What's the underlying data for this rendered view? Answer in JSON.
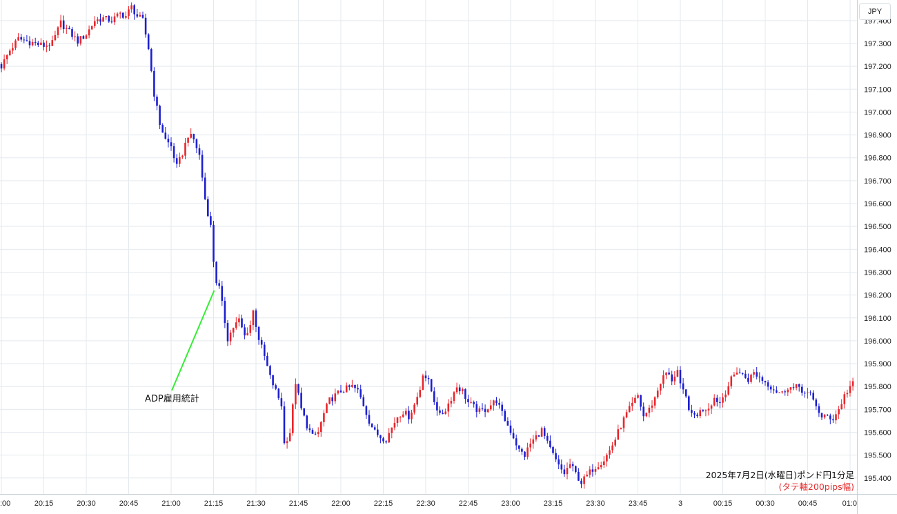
{
  "chart_data": {
    "type": "candlestick",
    "unit": "JPY",
    "y_ticks": [
      "197.400",
      "197.300",
      "197.200",
      "197.100",
      "197.000",
      "196.900",
      "196.800",
      "196.700",
      "196.600",
      "196.500",
      "196.400",
      "196.300",
      "196.200",
      "196.100",
      "196.000",
      "195.900",
      "195.800",
      "195.700",
      "195.600",
      "195.500",
      "195.400"
    ],
    "ylim": [
      195.33,
      197.49
    ],
    "x_ticks": [
      ":00",
      "20:15",
      "20:30",
      "20:45",
      "21:00",
      "21:15",
      "21:30",
      "21:45",
      "22:00",
      "22:15",
      "22:30",
      "22:45",
      "23:00",
      "23:15",
      "23:30",
      "23:45",
      "3",
      "00:15",
      "00:30",
      "00:45",
      "01:0"
    ],
    "grid": true,
    "annotation": {
      "text": "ADP雇用統計",
      "time": "21:15",
      "value": 196.22
    },
    "caption_line1": "2025年7月2日(水曜日)ポンド円1分足",
    "caption_line2": "(タテ軸200pips幅)",
    "colors": {
      "up": "#e8262c",
      "down": "#1c1fd0",
      "annotation_line": "#33ee33",
      "grid": "#e3e9ee"
    },
    "close_path": [
      [
        0,
        197.2
      ],
      [
        3,
        197.27
      ],
      [
        6,
        197.32
      ],
      [
        9,
        197.31
      ],
      [
        12,
        197.3
      ],
      [
        15,
        197.29
      ],
      [
        18,
        197.3
      ],
      [
        21,
        197.39
      ],
      [
        24,
        197.35
      ],
      [
        27,
        197.31
      ],
      [
        30,
        197.34
      ],
      [
        33,
        197.4
      ],
      [
        36,
        197.41
      ],
      [
        39,
        197.4
      ],
      [
        42,
        197.43
      ],
      [
        44,
        197.42
      ],
      [
        46,
        197.46
      ],
      [
        48,
        197.42
      ],
      [
        50,
        197.4
      ],
      [
        52,
        197.28
      ],
      [
        54,
        197.08
      ],
      [
        56,
        196.95
      ],
      [
        58,
        196.88
      ],
      [
        60,
        196.85
      ],
      [
        62,
        196.76
      ],
      [
        64,
        196.82
      ],
      [
        66,
        196.9
      ],
      [
        68,
        196.88
      ],
      [
        70,
        196.81
      ],
      [
        72,
        196.62
      ],
      [
        74,
        196.5
      ],
      [
        75,
        196.35
      ],
      [
        76,
        196.26
      ],
      [
        77,
        196.23
      ],
      [
        78,
        196.16
      ],
      [
        80,
        196.01
      ],
      [
        82,
        196.06
      ],
      [
        84,
        196.09
      ],
      [
        86,
        196.02
      ],
      [
        88,
        196.07
      ],
      [
        89,
        196.13
      ],
      [
        91,
        196.01
      ],
      [
        93,
        195.93
      ],
      [
        95,
        195.84
      ],
      [
        97,
        195.78
      ],
      [
        99,
        195.72
      ],
      [
        100,
        195.55
      ],
      [
        102,
        195.6
      ],
      [
        104,
        195.82
      ],
      [
        106,
        195.7
      ],
      [
        108,
        195.63
      ],
      [
        110,
        195.58
      ],
      [
        112,
        195.6
      ],
      [
        114,
        195.68
      ],
      [
        116,
        195.74
      ],
      [
        118,
        195.76
      ],
      [
        120,
        195.78
      ],
      [
        122,
        195.79
      ],
      [
        124,
        195.8
      ],
      [
        126,
        195.78
      ],
      [
        128,
        195.72
      ],
      [
        130,
        195.65
      ],
      [
        132,
        195.6
      ],
      [
        134,
        195.58
      ],
      [
        136,
        195.57
      ],
      [
        138,
        195.62
      ],
      [
        140,
        195.67
      ],
      [
        142,
        195.69
      ],
      [
        144,
        195.67
      ],
      [
        146,
        195.72
      ],
      [
        148,
        195.79
      ],
      [
        149,
        195.86
      ],
      [
        151,
        195.82
      ],
      [
        153,
        195.74
      ],
      [
        155,
        195.67
      ],
      [
        157,
        195.7
      ],
      [
        159,
        195.75
      ],
      [
        161,
        195.8
      ],
      [
        163,
        195.78
      ],
      [
        165,
        195.73
      ],
      [
        167,
        195.71
      ],
      [
        169,
        195.69
      ],
      [
        171,
        195.7
      ],
      [
        173,
        195.72
      ],
      [
        175,
        195.74
      ],
      [
        177,
        195.68
      ],
      [
        179,
        195.63
      ],
      [
        181,
        195.58
      ],
      [
        183,
        195.52
      ],
      [
        185,
        195.5
      ],
      [
        187,
        195.55
      ],
      [
        189,
        195.58
      ],
      [
        191,
        195.61
      ],
      [
        193,
        195.55
      ],
      [
        195,
        195.5
      ],
      [
        197,
        195.45
      ],
      [
        199,
        195.42
      ],
      [
        201,
        195.46
      ],
      [
        203,
        195.42
      ],
      [
        205,
        195.38
      ],
      [
        207,
        195.41
      ],
      [
        209,
        195.44
      ],
      [
        211,
        195.46
      ],
      [
        213,
        195.48
      ],
      [
        215,
        195.52
      ],
      [
        217,
        195.57
      ],
      [
        219,
        195.63
      ],
      [
        221,
        195.68
      ],
      [
        223,
        195.72
      ],
      [
        225,
        195.76
      ],
      [
        227,
        195.67
      ],
      [
        229,
        195.7
      ],
      [
        231,
        195.75
      ],
      [
        233,
        195.82
      ],
      [
        235,
        195.86
      ],
      [
        237,
        195.83
      ],
      [
        239,
        195.87
      ],
      [
        240,
        195.8
      ],
      [
        242,
        195.75
      ],
      [
        244,
        195.67
      ],
      [
        246,
        195.68
      ],
      [
        248,
        195.7
      ],
      [
        250,
        195.71
      ],
      [
        252,
        195.75
      ],
      [
        254,
        195.73
      ],
      [
        256,
        195.78
      ],
      [
        258,
        195.83
      ],
      [
        260,
        195.87
      ],
      [
        262,
        195.85
      ],
      [
        264,
        195.83
      ],
      [
        266,
        195.86
      ],
      [
        268,
        195.84
      ],
      [
        270,
        195.82
      ],
      [
        272,
        195.8
      ],
      [
        274,
        195.78
      ],
      [
        276,
        195.77
      ],
      [
        278,
        195.8
      ],
      [
        280,
        195.79
      ],
      [
        282,
        195.8
      ],
      [
        284,
        195.77
      ],
      [
        286,
        195.76
      ],
      [
        288,
        195.72
      ],
      [
        290,
        195.66
      ],
      [
        292,
        195.67
      ],
      [
        294,
        195.66
      ],
      [
        296,
        195.7
      ],
      [
        298,
        195.76
      ],
      [
        300,
        195.8
      ],
      [
        302,
        195.82
      ],
      [
        304,
        195.8
      ]
    ]
  }
}
